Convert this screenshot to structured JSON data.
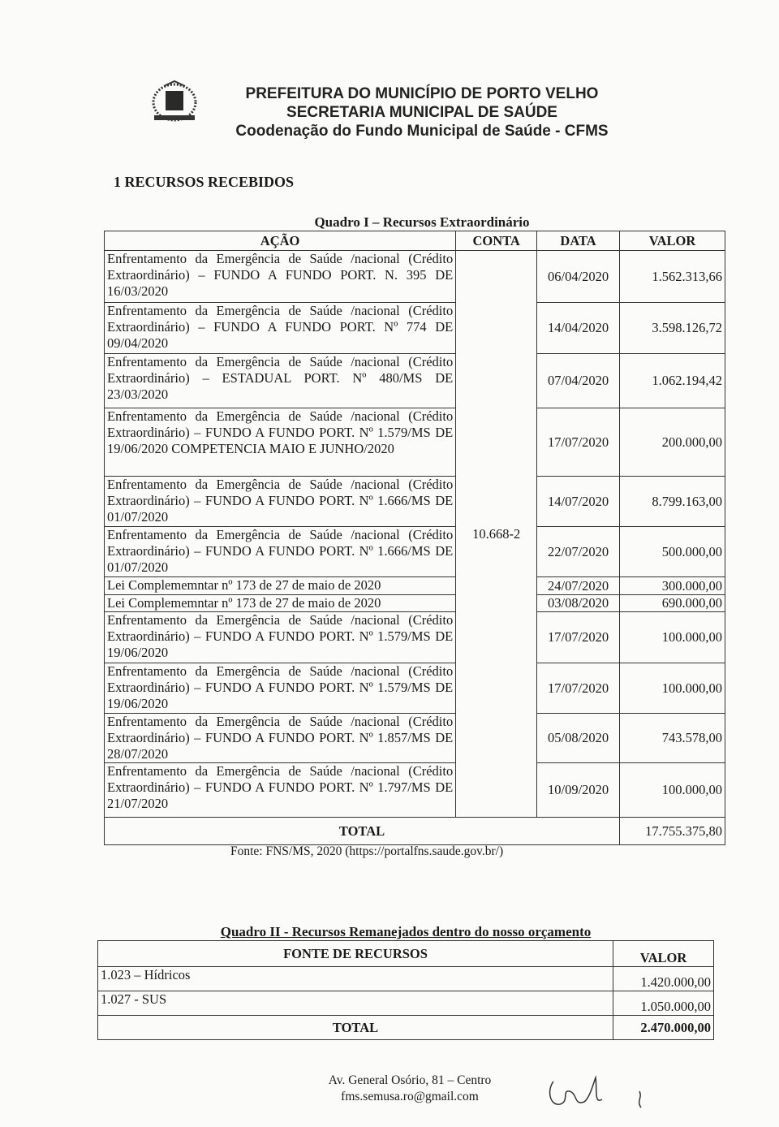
{
  "header": {
    "line1": "PREFEITURA DO MUNICÍPIO DE PORTO VELHO",
    "line2": "SECRETARIA MUNICIPAL DE SAÚDE",
    "line3": "Coodenação do Fundo Municipal de Saúde - CFMS",
    "logo_icon": "municipal-coat-of-arms"
  },
  "section_title": "1 RECURSOS RECEBIDOS",
  "quadro1": {
    "caption": "Quadro I – Recursos Extraordinário",
    "headers": {
      "acao": "AÇÃO",
      "conta": "CONTA",
      "data": "DATA",
      "valor": "VALOR"
    },
    "conta": "10.668-2",
    "rows": [
      {
        "acao": "Enfrentamento da Emergência de Saúde /nacional (Crédito Extraordinário) – FUNDO A FUNDO PORT. N. 395 DE 16/03/2020",
        "data": "06/04/2020",
        "valor": "1.562.313,66"
      },
      {
        "acao": "Enfrentamento da Emergência de Saúde /nacional (Crédito Extraordinário) – FUNDO A FUNDO PORT. Nº 774 DE 09/04/2020",
        "data": "14/04/2020",
        "valor": "3.598.126,72"
      },
      {
        "acao": "Enfrentamento da Emergência de Saúde /nacional (Crédito Extraordinário) – ESTADUAL PORT. Nº 480/MS DE 23/03/2020",
        "data": "07/04/2020",
        "valor": "1.062.194,42"
      },
      {
        "acao": "Enfrentamento da Emergência de Saúde /nacional (Crédito Extraordinário) – FUNDO A FUNDO PORT. Nº 1.579/MS DE 19/06/2020 COMPETENCIA MAIO E JUNHO/2020",
        "data": "17/07/2020",
        "valor": "200.000,00"
      },
      {
        "acao": "Enfrentamento da Emergência de Saúde /nacional (Crédito Extraordinário) – FUNDO A FUNDO PORT. Nº 1.666/MS DE 01/07/2020",
        "data": "14/07/2020",
        "valor": "8.799.163,00"
      },
      {
        "acao": "Enfrentamento da Emergência de Saúde /nacional (Crédito Extraordinário) – FUNDO A FUNDO PORT. Nº 1.666/MS DE 01/07/2020",
        "data": "22/07/2020",
        "valor": "500.000,00"
      },
      {
        "acao": "Lei Complememntar nº 173 de 27 de maio de 2020",
        "data": "24/07/2020",
        "valor": "300.000,00"
      },
      {
        "acao": "Lei Complememntar nº 173 de 27 de maio de 2020",
        "data": "03/08/2020",
        "valor": "690.000,00"
      },
      {
        "acao": "Enfrentamento da Emergência de Saúde /nacional (Crédito Extraordinário) – FUNDO A FUNDO PORT. Nº 1.579/MS DE 19/06/2020",
        "data": "17/07/2020",
        "valor": "100.000,00"
      },
      {
        "acao": "Enfrentamento da Emergência de Saúde /nacional (Crédito Extraordinário) – FUNDO A FUNDO PORT. Nº 1.579/MS DE 19/06/2020",
        "data": "17/07/2020",
        "valor": "100.000,00"
      },
      {
        "acao": "Enfrentamento da Emergência de Saúde /nacional (Crédito Extraordinário) – FUNDO A FUNDO PORT. Nº 1.857/MS DE 28/07/2020",
        "data": "05/08/2020",
        "valor": "743.578,00"
      },
      {
        "acao": "Enfrentamento da Emergência de Saúde /nacional (Crédito Extraordinário) – FUNDO A FUNDO PORT. Nº 1.797/MS DE 21/07/2020",
        "data": "10/09/2020",
        "valor": "100.000,00"
      }
    ],
    "total_label": "TOTAL",
    "total_value": "17.755.375,80",
    "source": "Fonte: FNS/MS, 2020 (https://portalfns.saude.gov.br/)"
  },
  "quadro2": {
    "caption": "Quadro II - Recursos Remanejados dentro do nosso orçamento",
    "headers": {
      "fonte": "FONTE DE RECURSOS",
      "valor": "VALOR"
    },
    "rows": [
      {
        "fonte": "1.023 – Hídricos",
        "valor": "1.420.000,00"
      },
      {
        "fonte": "1.027 - SUS",
        "valor": "1.050.000,00"
      }
    ],
    "total_label": "TOTAL",
    "total_value": "2.470.000,00"
  },
  "footer": {
    "address": "Av. General Osório, 81 – Centro",
    "email": "fms.semusa.ro@gmail.com"
  }
}
